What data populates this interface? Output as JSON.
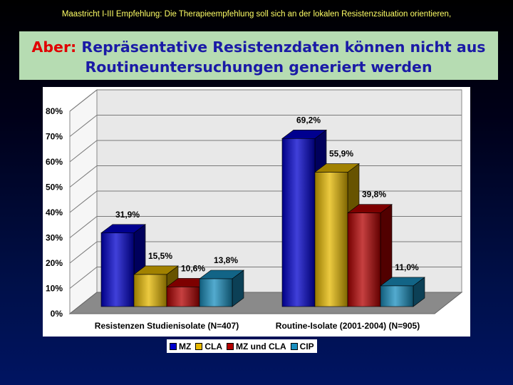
{
  "header": {
    "top_note": "Maastricht I-III Empfehlung: Die Therapieempfehlung soll sich an der lokalen Resistenzsituation orientieren,",
    "title_prefix": "Aber:",
    "title_rest": "Repräsentative Resistenzdaten können nicht aus",
    "title_line2": "Routineuntersuchungen generiert werden"
  },
  "colors": {
    "background": "#000030",
    "title_box": "#b6dcb2",
    "title_text": "#1a1aa6",
    "title_accent": "#e00000",
    "top_note": "#ffff66"
  },
  "chart_data": {
    "type": "bar",
    "categories": [
      "Resistenzen Studienisolate (N=407)",
      "Routine-Isolate (2001-2004) (N=905)"
    ],
    "series": [
      {
        "name": "MZ",
        "values": [
          31.9,
          69.2
        ],
        "labels": [
          "31,9%",
          "69,2%"
        ],
        "color": "#0000cc"
      },
      {
        "name": "CLA",
        "values": [
          15.5,
          55.9
        ],
        "labels": [
          "15,5%",
          "55,9%"
        ],
        "color": "#e6b800"
      },
      {
        "name": "MZ und CLA",
        "values": [
          10.6,
          39.8
        ],
        "labels": [
          "10,6%",
          "39,8%"
        ],
        "color": "#b30000"
      },
      {
        "name": "CIP",
        "values": [
          13.8,
          11.0
        ],
        "labels": [
          "13,8%",
          "11,0%"
        ],
        "color": "#1a8fbf"
      }
    ],
    "y_ticks": [
      "0%",
      "10%",
      "20%",
      "30%",
      "40%",
      "50%",
      "60%",
      "70%",
      "80%"
    ],
    "ylim": [
      0,
      80
    ],
    "grid": true,
    "legend_position": "bottom",
    "three_d": true
  }
}
